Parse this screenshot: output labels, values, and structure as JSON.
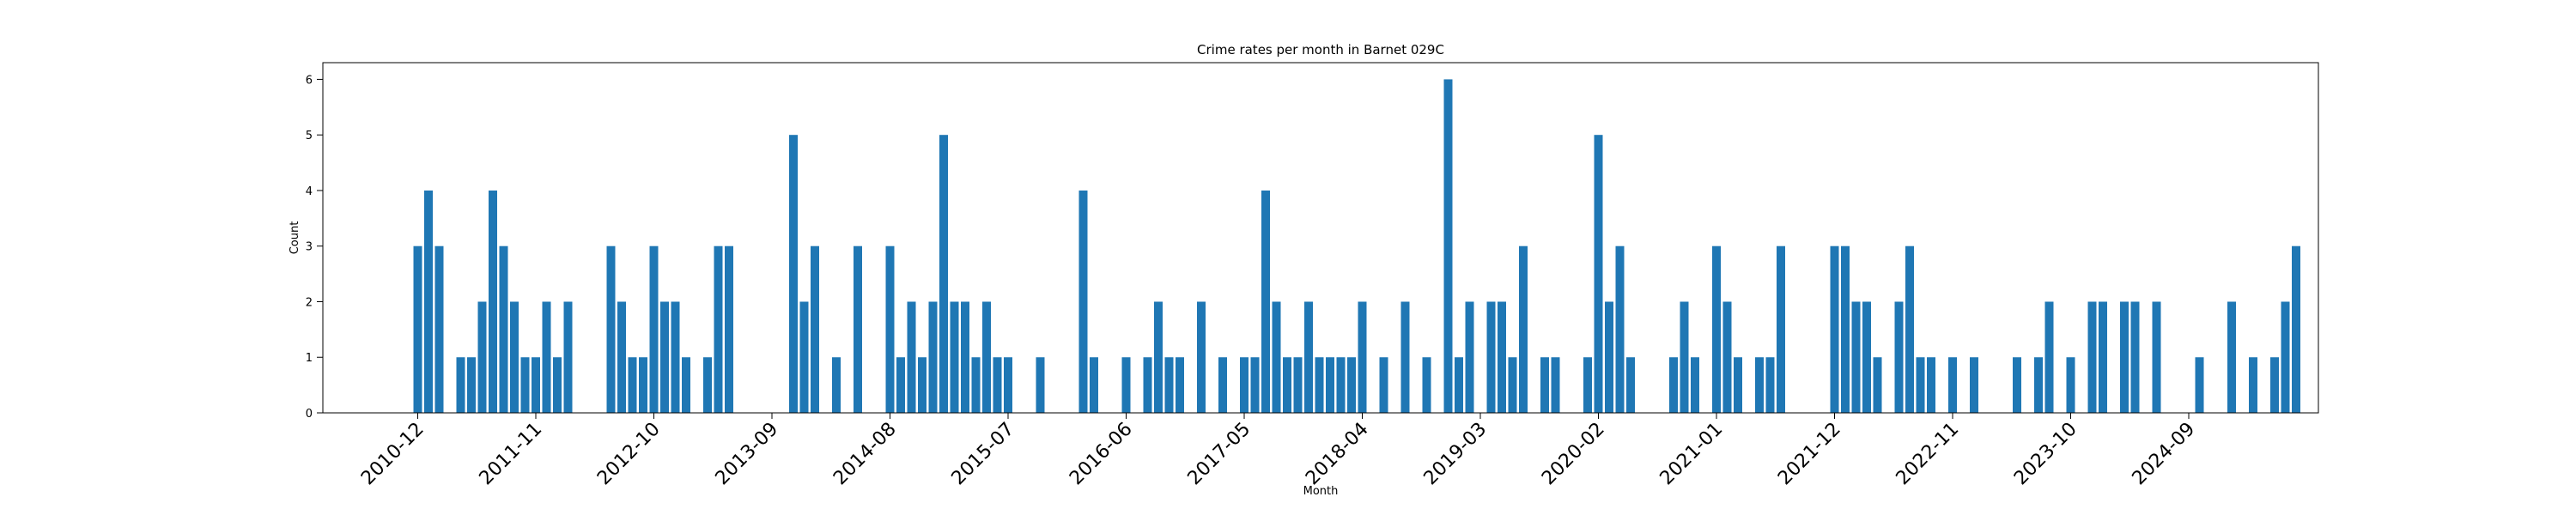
{
  "chart_data": {
    "type": "bar",
    "title": "Crime rates per month in Barnet 029C",
    "xlabel": "Month",
    "ylabel": "Count",
    "ylim": [
      0,
      6.3
    ],
    "yticks": [
      0,
      1,
      2,
      3,
      4,
      5,
      6
    ],
    "xtick_labels": [
      "2010-12",
      "2011-11",
      "2012-10",
      "2013-09",
      "2014-08",
      "2015-07",
      "2016-06",
      "2017-05",
      "2018-04",
      "2019-03",
      "2020-02",
      "2021-01",
      "2021-12",
      "2022-11",
      "2023-10",
      "2024-09"
    ],
    "start_month": "2010-12",
    "color": "#1f77b4",
    "values": [
      3,
      4,
      3,
      0,
      1,
      1,
      2,
      4,
      3,
      2,
      1,
      1,
      2,
      1,
      2,
      0,
      0,
      0,
      3,
      2,
      1,
      1,
      3,
      2,
      2,
      1,
      0,
      1,
      3,
      3,
      0,
      0,
      0,
      0,
      0,
      5,
      2,
      3,
      0,
      1,
      0,
      3,
      0,
      0,
      3,
      1,
      2,
      1,
      2,
      5,
      2,
      2,
      1,
      2,
      1,
      1,
      0,
      0,
      1,
      0,
      0,
      0,
      4,
      1,
      0,
      0,
      1,
      0,
      1,
      2,
      1,
      1,
      0,
      2,
      0,
      1,
      0,
      1,
      1,
      4,
      2,
      1,
      1,
      2,
      1,
      1,
      1,
      1,
      2,
      0,
      1,
      0,
      2,
      0,
      1,
      0,
      6,
      1,
      2,
      0,
      2,
      2,
      1,
      3,
      0,
      1,
      1,
      0,
      0,
      1,
      5,
      2,
      3,
      1,
      0,
      0,
      0,
      1,
      2,
      1,
      0,
      3,
      2,
      1,
      0,
      1,
      1,
      3,
      0,
      0,
      0,
      0,
      3,
      3,
      2,
      2,
      1,
      0,
      2,
      3,
      1,
      1,
      0,
      1,
      0,
      1,
      0,
      0,
      0,
      1,
      0,
      1,
      2,
      0,
      1,
      0,
      2,
      2,
      0,
      2,
      2,
      0,
      2,
      0,
      0,
      0,
      1,
      0,
      0,
      2,
      0,
      1,
      0,
      1,
      2,
      3
    ]
  }
}
